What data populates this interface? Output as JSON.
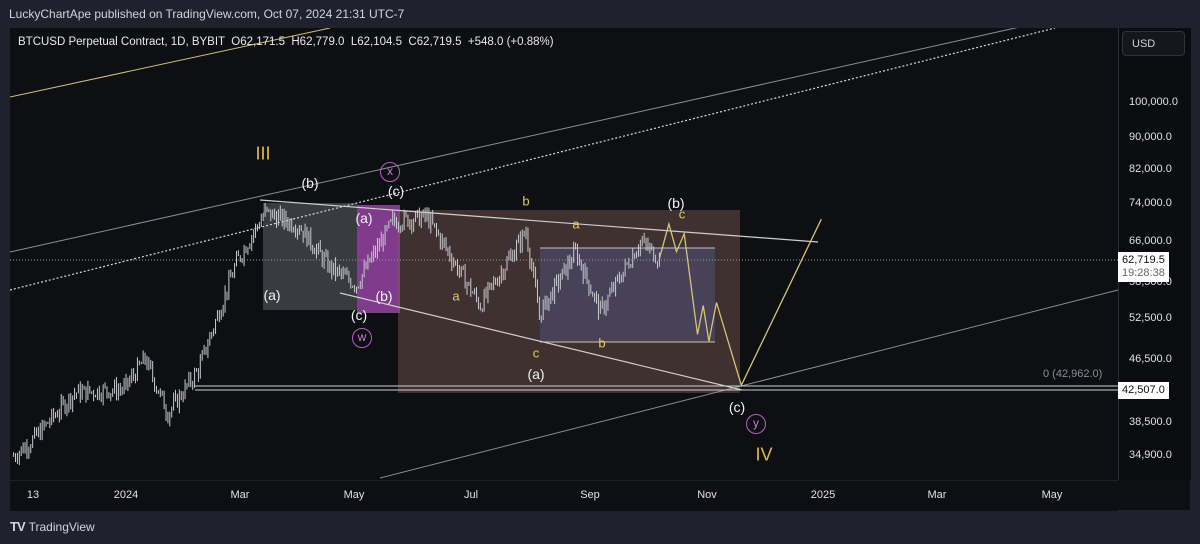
{
  "publisher": "LuckyChartApe published on TradingView.com, Oct 07, 2024 21:31 UTC-7",
  "legend": {
    "symbol": "BTCUSD Perpetual Contract, 1D, BYBIT",
    "open": "O62,171.5",
    "high": "H62,779.0",
    "low": "L62,104.5",
    "close": "C62,719.5",
    "change": "+548.0 (+0.88%)"
  },
  "currency_button": "USD",
  "brand": "TradingView",
  "chart_data": {
    "type": "candlestick",
    "scale": "log",
    "ylim": [
      33500,
      125000
    ],
    "y_ticks": [
      "100,000.0",
      "90,000.0",
      "82,000.0",
      "74,000.0",
      "66,000.0",
      "58,500.0",
      "52,500.0",
      "46,500.0",
      "38,500.0",
      "34,900.0"
    ],
    "x_ticks": [
      "13",
      "2024",
      "Mar",
      "May",
      "Jul",
      "Sep",
      "Nov",
      "2025",
      "Mar",
      "May"
    ],
    "last_price": "62,719.5",
    "countdown": "19:28:38",
    "level_label": "42,507.0",
    "fib_label": "0 (42,962.0)",
    "price_path": [
      [
        "2023-11-03",
        34800
      ],
      [
        "2023-11-13",
        36500
      ],
      [
        "2023-12-05",
        42000
      ],
      [
        "2023-12-31",
        42500
      ],
      [
        "2024-01-11",
        46500
      ],
      [
        "2024-01-23",
        39500
      ],
      [
        "2024-02-08",
        45000
      ],
      [
        "2024-02-28",
        62000
      ],
      [
        "2024-03-14",
        72000
      ],
      [
        "2024-04-01",
        69000
      ],
      [
        "2024-04-17",
        61000
      ],
      [
        "2024-05-01",
        58000
      ],
      [
        "2024-05-20",
        70000
      ],
      [
        "2024-06-07",
        71000
      ],
      [
        "2024-07-05",
        54500
      ],
      [
        "2024-07-29",
        68000
      ],
      [
        "2024-08-05",
        53000
      ],
      [
        "2024-08-24",
        64000
      ],
      [
        "2024-09-06",
        53500
      ],
      [
        "2024-09-27",
        66000
      ],
      [
        "2024-10-07",
        62719.5
      ]
    ],
    "projection": [
      [
        "2024-10-07",
        62700
      ],
      [
        "2024-10-12",
        69500
      ],
      [
        "2024-10-16",
        64000
      ],
      [
        "2024-10-20",
        67500
      ],
      [
        "2024-10-27",
        50000
      ],
      [
        "2024-10-30",
        54500
      ],
      [
        "2024-11-02",
        49000
      ],
      [
        "2024-11-06",
        55000
      ],
      [
        "2024-11-19",
        42962
      ],
      [
        "2024-12-31",
        70500
      ]
    ],
    "wave_labels": {
      "III": "III",
      "IV": "IV",
      "b1": "(b)",
      "a1": "(a)",
      "c1": "(c)",
      "w": "w",
      "x": "x",
      "c2": "(c)",
      "a2": "(a)",
      "b2": "(b)",
      "sub_b": "b",
      "sub_a": "a",
      "sub_a2": "a",
      "sub_c": "c",
      "sub_b2": "b",
      "sub_c2": "c",
      "a3": "(a)",
      "b3": "(b)",
      "c3": "(c)",
      "y": "y"
    },
    "colors": {
      "background": "#0e0f12",
      "candle": "#c8cad0",
      "projection": "#d8c27a",
      "box_grey": "#8a8f99",
      "box_magenta": "#b24fc0",
      "box_brown": "#7a5a55",
      "box_blue": "#5a63a6"
    }
  }
}
